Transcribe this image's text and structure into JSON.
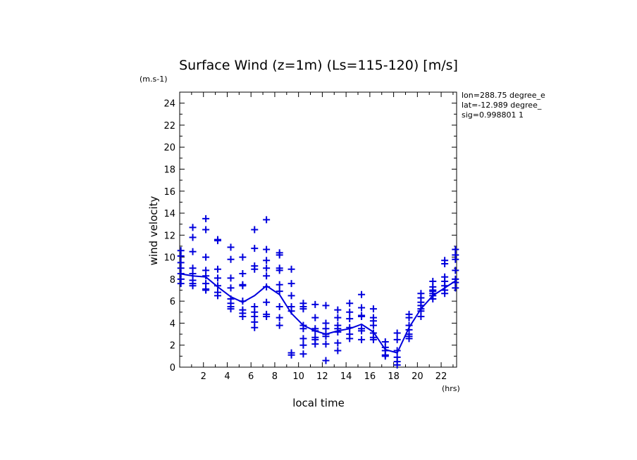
{
  "colors": {
    "series": "#0000dd",
    "axis": "#000000"
  },
  "chart_data": {
    "type": "scatter",
    "title": "Surface Wind (z=1m) (Ls=115-120) [m/s]",
    "y_unit": "(m.s-1)",
    "x_unit": "(hrs)",
    "xlabel": "local time",
    "ylabel": "wind velocity",
    "xlim": [
      0,
      23.3
    ],
    "ylim": [
      0,
      25
    ],
    "x_ticks": [
      2,
      4,
      6,
      8,
      10,
      12,
      14,
      16,
      18,
      20,
      22
    ],
    "y_ticks": [
      0,
      2,
      4,
      6,
      8,
      10,
      12,
      14,
      16,
      18,
      20,
      22,
      24
    ],
    "info_lines": [
      "lon=288.75 degree_e",
      "lat=-12.989 degree_",
      "sig=0.998801 1"
    ],
    "series": [
      {
        "type": "scatter",
        "marker": "plus",
        "points": [
          [
            0.1,
            10.6
          ],
          [
            0.1,
            10.1
          ],
          [
            0.1,
            9.5
          ],
          [
            0.1,
            9.0
          ],
          [
            0.1,
            8.5
          ],
          [
            0.1,
            8.0
          ],
          [
            0.1,
            7.6
          ],
          [
            1.1,
            12.7
          ],
          [
            1.1,
            11.8
          ],
          [
            1.1,
            10.5
          ],
          [
            1.1,
            9.0
          ],
          [
            1.1,
            8.5
          ],
          [
            1.1,
            7.9
          ],
          [
            1.1,
            7.6
          ],
          [
            1.1,
            7.4
          ],
          [
            2.2,
            13.5
          ],
          [
            2.2,
            12.5
          ],
          [
            2.2,
            10.0
          ],
          [
            2.2,
            8.8
          ],
          [
            2.2,
            8.3
          ],
          [
            2.2,
            7.6
          ],
          [
            2.2,
            7.1
          ],
          [
            2.2,
            7.0
          ],
          [
            3.2,
            11.6
          ],
          [
            3.2,
            11.5
          ],
          [
            3.2,
            8.9
          ],
          [
            3.2,
            8.1
          ],
          [
            3.2,
            7.4
          ],
          [
            3.2,
            6.8
          ],
          [
            3.2,
            6.5
          ],
          [
            4.3,
            10.9
          ],
          [
            4.3,
            9.8
          ],
          [
            4.3,
            8.1
          ],
          [
            4.3,
            7.2
          ],
          [
            4.3,
            6.2
          ],
          [
            4.3,
            5.8
          ],
          [
            4.3,
            5.5
          ],
          [
            4.3,
            5.3
          ],
          [
            5.3,
            10.0
          ],
          [
            5.3,
            8.5
          ],
          [
            5.3,
            7.5
          ],
          [
            5.3,
            7.4
          ],
          [
            5.3,
            6.0
          ],
          [
            5.3,
            5.2
          ],
          [
            5.3,
            4.9
          ],
          [
            5.3,
            4.6
          ],
          [
            6.3,
            12.5
          ],
          [
            6.3,
            10.8
          ],
          [
            6.3,
            9.2
          ],
          [
            6.3,
            8.9
          ],
          [
            6.3,
            5.5
          ],
          [
            6.3,
            5.0
          ],
          [
            6.3,
            4.6
          ],
          [
            6.3,
            4.1
          ],
          [
            6.3,
            3.6
          ],
          [
            7.3,
            13.4
          ],
          [
            7.3,
            10.7
          ],
          [
            7.3,
            9.7
          ],
          [
            7.3,
            9.0
          ],
          [
            7.3,
            8.3
          ],
          [
            7.3,
            7.3
          ],
          [
            7.3,
            5.9
          ],
          [
            7.3,
            4.8
          ],
          [
            7.3,
            4.6
          ],
          [
            8.4,
            10.4
          ],
          [
            8.4,
            10.2
          ],
          [
            8.4,
            9.0
          ],
          [
            8.4,
            8.8
          ],
          [
            8.4,
            7.5
          ],
          [
            8.4,
            6.9
          ],
          [
            8.4,
            5.5
          ],
          [
            8.4,
            4.5
          ],
          [
            8.4,
            3.8
          ],
          [
            9.4,
            8.9
          ],
          [
            9.4,
            7.6
          ],
          [
            9.4,
            6.5
          ],
          [
            9.4,
            5.5
          ],
          [
            9.4,
            5.1
          ],
          [
            9.4,
            1.3
          ],
          [
            9.4,
            1.1
          ],
          [
            10.4,
            5.8
          ],
          [
            10.4,
            5.5
          ],
          [
            10.4,
            5.3
          ],
          [
            10.4,
            3.8
          ],
          [
            10.4,
            3.5
          ],
          [
            10.4,
            2.6
          ],
          [
            10.4,
            2.0
          ],
          [
            10.4,
            1.2
          ],
          [
            11.4,
            5.7
          ],
          [
            11.4,
            4.5
          ],
          [
            11.4,
            3.5
          ],
          [
            11.4,
            3.3
          ],
          [
            11.4,
            2.7
          ],
          [
            11.4,
            2.5
          ],
          [
            11.4,
            2.1
          ],
          [
            12.3,
            5.6
          ],
          [
            12.3,
            4.0
          ],
          [
            12.3,
            3.5
          ],
          [
            12.3,
            3.0
          ],
          [
            12.3,
            2.8
          ],
          [
            12.3,
            2.1
          ],
          [
            12.3,
            0.6
          ],
          [
            13.3,
            5.2
          ],
          [
            13.3,
            4.5
          ],
          [
            13.3,
            3.8
          ],
          [
            13.3,
            3.5
          ],
          [
            13.3,
            3.2
          ],
          [
            13.3,
            2.2
          ],
          [
            13.3,
            1.5
          ],
          [
            14.3,
            5.8
          ],
          [
            14.3,
            5.0
          ],
          [
            14.3,
            4.4
          ],
          [
            14.3,
            3.6
          ],
          [
            14.3,
            3.0
          ],
          [
            14.3,
            2.6
          ],
          [
            15.3,
            6.6
          ],
          [
            15.3,
            5.4
          ],
          [
            15.3,
            4.7
          ],
          [
            15.3,
            4.6
          ],
          [
            15.3,
            3.5
          ],
          [
            15.3,
            3.3
          ],
          [
            15.3,
            2.5
          ],
          [
            16.3,
            5.3
          ],
          [
            16.3,
            4.5
          ],
          [
            16.3,
            4.2
          ],
          [
            16.3,
            3.8
          ],
          [
            16.3,
            3.1
          ],
          [
            16.3,
            2.7
          ],
          [
            16.3,
            2.5
          ],
          [
            17.3,
            2.3
          ],
          [
            17.3,
            1.8
          ],
          [
            17.3,
            1.5
          ],
          [
            17.3,
            1.1
          ],
          [
            17.3,
            1.0
          ],
          [
            18.3,
            3.1
          ],
          [
            18.3,
            2.5
          ],
          [
            18.3,
            1.5
          ],
          [
            18.3,
            0.9
          ],
          [
            18.3,
            0.5
          ],
          [
            18.3,
            0.2
          ],
          [
            19.3,
            4.8
          ],
          [
            19.3,
            4.5
          ],
          [
            19.3,
            3.8
          ],
          [
            19.3,
            3.4
          ],
          [
            19.3,
            3.0
          ],
          [
            19.3,
            2.8
          ],
          [
            19.3,
            2.6
          ],
          [
            20.3,
            6.7
          ],
          [
            20.3,
            6.3
          ],
          [
            20.3,
            5.9
          ],
          [
            20.3,
            5.6
          ],
          [
            20.3,
            5.3
          ],
          [
            20.3,
            5.1
          ],
          [
            20.3,
            4.6
          ],
          [
            21.3,
            7.8
          ],
          [
            21.3,
            7.3
          ],
          [
            21.3,
            7.0
          ],
          [
            21.3,
            6.9
          ],
          [
            21.3,
            6.7
          ],
          [
            21.3,
            6.5
          ],
          [
            21.3,
            6.2
          ],
          [
            22.3,
            9.7
          ],
          [
            22.3,
            9.4
          ],
          [
            22.3,
            8.2
          ],
          [
            22.3,
            7.8
          ],
          [
            22.3,
            7.4
          ],
          [
            22.3,
            7.0
          ],
          [
            22.3,
            6.7
          ],
          [
            23.2,
            10.7
          ],
          [
            23.2,
            10.2
          ],
          [
            23.2,
            9.8
          ],
          [
            23.2,
            8.8
          ],
          [
            23.2,
            8.0
          ],
          [
            23.2,
            7.7
          ],
          [
            23.2,
            7.2
          ]
        ]
      },
      {
        "type": "line",
        "x": [
          0,
          1.1,
          2.2,
          3.2,
          4.3,
          5.3,
          6.3,
          7.3,
          8.4,
          9.4,
          10.4,
          11.4,
          12.3,
          13.3,
          14.3,
          15.3,
          16.3,
          17.3,
          18.3,
          19.3,
          20.3,
          21.3,
          22.3,
          23.3
        ],
        "values": [
          8.5,
          8.3,
          8.2,
          7.3,
          6.4,
          5.9,
          6.5,
          7.4,
          6.6,
          4.9,
          3.8,
          3.3,
          3.0,
          3.3,
          3.5,
          3.9,
          3.2,
          1.6,
          1.3,
          3.6,
          5.3,
          6.5,
          7.2,
          7.9
        ]
      }
    ]
  }
}
